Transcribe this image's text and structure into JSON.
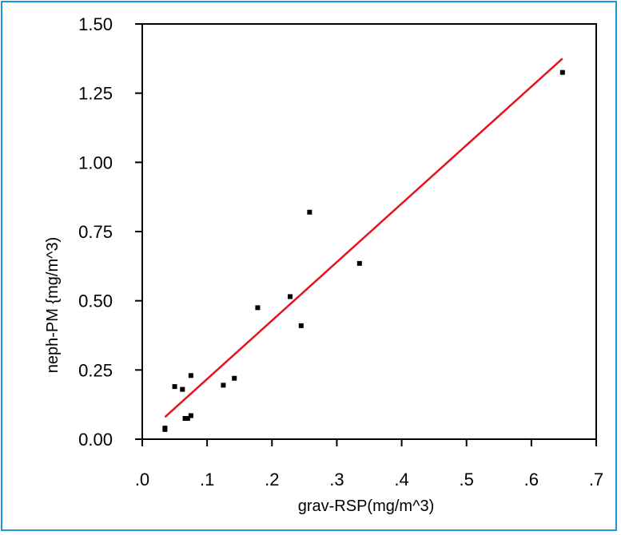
{
  "chart_data": {
    "type": "scatter",
    "title": "",
    "xlabel": "grav-RSP(mg/m^3)",
    "ylabel": "neph-PM {mg/m^3)",
    "xlim": [
      0,
      0.7
    ],
    "ylim": [
      0,
      1.5
    ],
    "x_ticks": [
      {
        "value": 0.0,
        "label": ".0"
      },
      {
        "value": 0.1,
        "label": ".1"
      },
      {
        "value": 0.2,
        "label": ".2"
      },
      {
        "value": 0.3,
        "label": ".3"
      },
      {
        "value": 0.4,
        "label": ".4"
      },
      {
        "value": 0.5,
        "label": ".5"
      },
      {
        "value": 0.6,
        "label": ".6"
      },
      {
        "value": 0.7,
        "label": ".7"
      }
    ],
    "y_ticks": [
      {
        "value": 0.0,
        "label": "0.00"
      },
      {
        "value": 0.25,
        "label": "0.25"
      },
      {
        "value": 0.5,
        "label": "0.50"
      },
      {
        "value": 0.75,
        "label": "0.75"
      },
      {
        "value": 1.0,
        "label": "1.00"
      },
      {
        "value": 1.25,
        "label": "1.25"
      },
      {
        "value": 1.5,
        "label": "1.50"
      }
    ],
    "grid": false,
    "points": [
      {
        "x": 0.035,
        "y": 0.035
      },
      {
        "x": 0.035,
        "y": 0.04
      },
      {
        "x": 0.05,
        "y": 0.19
      },
      {
        "x": 0.062,
        "y": 0.18
      },
      {
        "x": 0.066,
        "y": 0.075
      },
      {
        "x": 0.07,
        "y": 0.075
      },
      {
        "x": 0.075,
        "y": 0.085
      },
      {
        "x": 0.075,
        "y": 0.23
      },
      {
        "x": 0.125,
        "y": 0.195
      },
      {
        "x": 0.142,
        "y": 0.22
      },
      {
        "x": 0.178,
        "y": 0.475
      },
      {
        "x": 0.228,
        "y": 0.515
      },
      {
        "x": 0.245,
        "y": 0.41
      },
      {
        "x": 0.258,
        "y": 0.82
      },
      {
        "x": 0.335,
        "y": 0.635
      },
      {
        "x": 0.648,
        "y": 1.325
      }
    ],
    "fit_line": {
      "x": [
        0.035,
        0.648
      ],
      "y": [
        0.08,
        1.375
      ]
    },
    "colors": {
      "points": "#000000",
      "fit_line": "#e8121e",
      "axes": "#000000",
      "frame_border": "#1a97d6"
    }
  }
}
